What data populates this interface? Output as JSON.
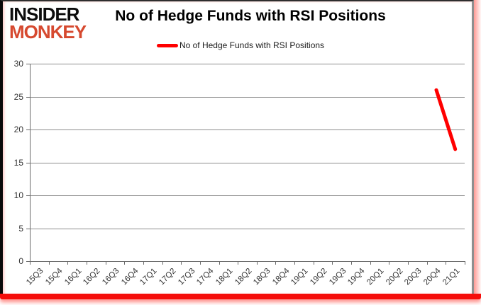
{
  "logo": {
    "line1": "INSIDER",
    "line2": "MONKEY",
    "monkey_color": "#d6492f"
  },
  "title": "No of Hedge Funds with RSI Positions",
  "legend": {
    "label": "No of Hedge Funds with RSI Positions",
    "color": "#ff0000"
  },
  "chart_data": {
    "type": "line",
    "title": "No of Hedge Funds with RSI Positions",
    "categories": [
      "15Q3",
      "15Q4",
      "16Q1",
      "16Q2",
      "16Q3",
      "16Q4",
      "17Q1",
      "17Q2",
      "17Q3",
      "17Q4",
      "18Q1",
      "18Q2",
      "18Q3",
      "18Q4",
      "19Q1",
      "19Q2",
      "19Q3",
      "19Q4",
      "20Q1",
      "20Q2",
      "20Q3",
      "20Q4",
      "21Q1"
    ],
    "series": [
      {
        "name": "No of Hedge Funds with RSI Positions",
        "color": "#ff0000",
        "values": [
          null,
          null,
          null,
          null,
          null,
          null,
          null,
          null,
          null,
          null,
          null,
          null,
          null,
          null,
          null,
          null,
          null,
          null,
          null,
          null,
          null,
          26,
          17
        ]
      }
    ],
    "xlabel": "",
    "ylabel": "",
    "ylim": [
      0,
      30
    ],
    "yticks": [
      0,
      5,
      10,
      15,
      20,
      25,
      30
    ],
    "grid": true,
    "legend_position": "top-center",
    "line_width": 5
  },
  "colors": {
    "gridline": "#8d8d8d",
    "axis": "#6b6b6b",
    "tick_label": "#333333",
    "title": "#000000",
    "frame_bottom_red": "#f50d0a"
  }
}
